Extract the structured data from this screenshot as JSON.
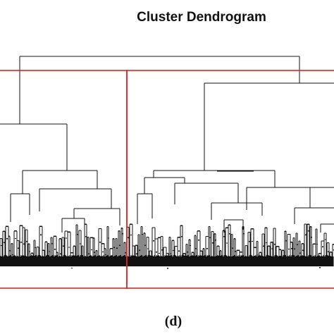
{
  "figure": {
    "title": "Cluster Dendrogram",
    "caption": "(d)",
    "cut_line_color": "#e0241f",
    "line_color": "#111111",
    "clusters_highlighted": 2
  }
}
